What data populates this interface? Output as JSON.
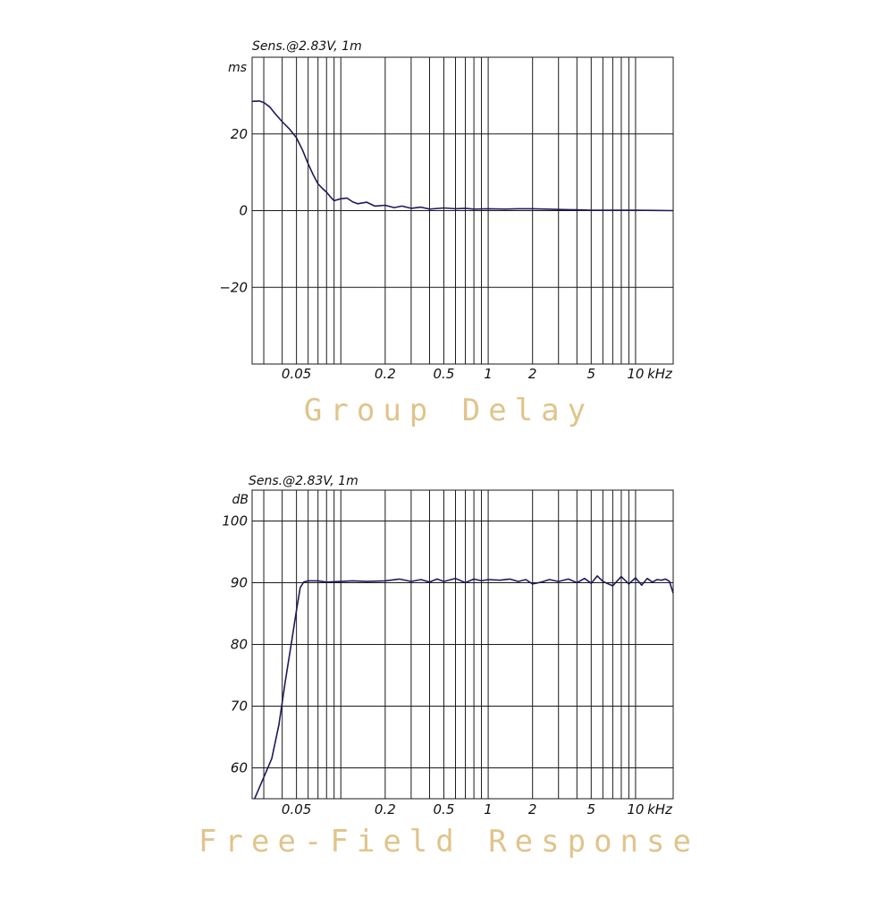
{
  "chart_data": [
    {
      "type": "line",
      "title": "Group Delay",
      "subtitle": "Sens.@2.83V, 1m",
      "ylabel": "ms",
      "xunit": "kHz",
      "xscale": "log",
      "xlim": [
        0.025,
        18
      ],
      "ylim": [
        -40,
        40
      ],
      "grid": true,
      "x_ticks": [
        {
          "value": 0.05,
          "label": "0.05"
        },
        {
          "value": 0.2,
          "label": "0.2"
        },
        {
          "value": 0.5,
          "label": "0.5"
        },
        {
          "value": 1,
          "label": "1"
        },
        {
          "value": 2,
          "label": "2"
        },
        {
          "value": 5,
          "label": "5"
        },
        {
          "value": 10,
          "label": "10"
        }
      ],
      "y_ticks": [
        {
          "value": 20,
          "label": "20"
        },
        {
          "value": 0,
          "label": "0"
        },
        {
          "value": -20,
          "label": "−20"
        }
      ],
      "color": "#1e1a5c",
      "series": [
        {
          "x": [
            0.025,
            0.028,
            0.03,
            0.033,
            0.036,
            0.04,
            0.045,
            0.05,
            0.055,
            0.06,
            0.065,
            0.07,
            0.075,
            0.08,
            0.085,
            0.09,
            0.1,
            0.11,
            0.12,
            0.13,
            0.15,
            0.17,
            0.2,
            0.23,
            0.26,
            0.3,
            0.35,
            0.4,
            0.5,
            0.6,
            0.7,
            0.8,
            1,
            1.3,
            1.6,
            2,
            2.5,
            3,
            4,
            5,
            7,
            10,
            14,
            18
          ],
          "y": [
            28.5,
            28.6,
            28.2,
            27,
            25.2,
            23.2,
            21.2,
            19,
            15.8,
            12.2,
            9.3,
            7,
            5.8,
            4.8,
            3.6,
            2.6,
            3.1,
            3.3,
            2.3,
            1.8,
            2.2,
            1.2,
            1.4,
            0.8,
            1.2,
            0.6,
            0.9,
            0.4,
            0.7,
            0.5,
            0.6,
            0.4,
            0.5,
            0.4,
            0.5,
            0.5,
            0.4,
            0.3,
            0.2,
            0.1,
            0.1,
            0.1,
            0.05,
            0.0
          ]
        }
      ]
    },
    {
      "type": "line",
      "title": "Free-Field Response",
      "subtitle": "Sens.@2.83V, 1m",
      "ylabel": "dB",
      "xunit": "kHz",
      "xscale": "log",
      "xlim": [
        0.025,
        18
      ],
      "ylim": [
        55,
        105
      ],
      "grid": true,
      "x_ticks": [
        {
          "value": 0.05,
          "label": "0.05"
        },
        {
          "value": 0.2,
          "label": "0.2"
        },
        {
          "value": 0.5,
          "label": "0.5"
        },
        {
          "value": 1,
          "label": "1"
        },
        {
          "value": 2,
          "label": "2"
        },
        {
          "value": 5,
          "label": "5"
        },
        {
          "value": 10,
          "label": "10"
        }
      ],
      "y_ticks": [
        {
          "value": 100,
          "label": "100"
        },
        {
          "value": 90,
          "label": "90"
        },
        {
          "value": 80,
          "label": "80"
        },
        {
          "value": 70,
          "label": "70"
        },
        {
          "value": 60,
          "label": "60"
        }
      ],
      "color": "#1e1a5c",
      "series": [
        {
          "x": [
            0.026,
            0.03,
            0.034,
            0.038,
            0.042,
            0.046,
            0.05,
            0.053,
            0.056,
            0.06,
            0.07,
            0.08,
            0.1,
            0.12,
            0.15,
            0.2,
            0.25,
            0.3,
            0.35,
            0.4,
            0.45,
            0.5,
            0.6,
            0.7,
            0.8,
            0.9,
            1,
            1.2,
            1.4,
            1.6,
            1.8,
            2,
            2.3,
            2.6,
            3,
            3.5,
            4,
            4.5,
            5,
            5.5,
            6,
            7,
            8,
            9,
            10,
            11,
            12,
            13,
            14,
            15,
            16,
            17,
            18
          ],
          "y": [
            55,
            58.5,
            61.5,
            67,
            74,
            80,
            85.5,
            89.2,
            90.1,
            90.3,
            90.3,
            90.1,
            90.2,
            90.3,
            90.2,
            90.3,
            90.6,
            90.2,
            90.5,
            90.1,
            90.6,
            90.2,
            90.7,
            90,
            90.6,
            90.3,
            90.5,
            90.4,
            90.6,
            90.2,
            90.5,
            89.8,
            90.1,
            90.5,
            90.2,
            90.6,
            90,
            90.7,
            89.9,
            91.1,
            90.2,
            89.5,
            91,
            89.8,
            90.8,
            89.6,
            90.7,
            90.1,
            90.5,
            90.4,
            90.6,
            90.2,
            88.3
          ]
        }
      ]
    }
  ]
}
